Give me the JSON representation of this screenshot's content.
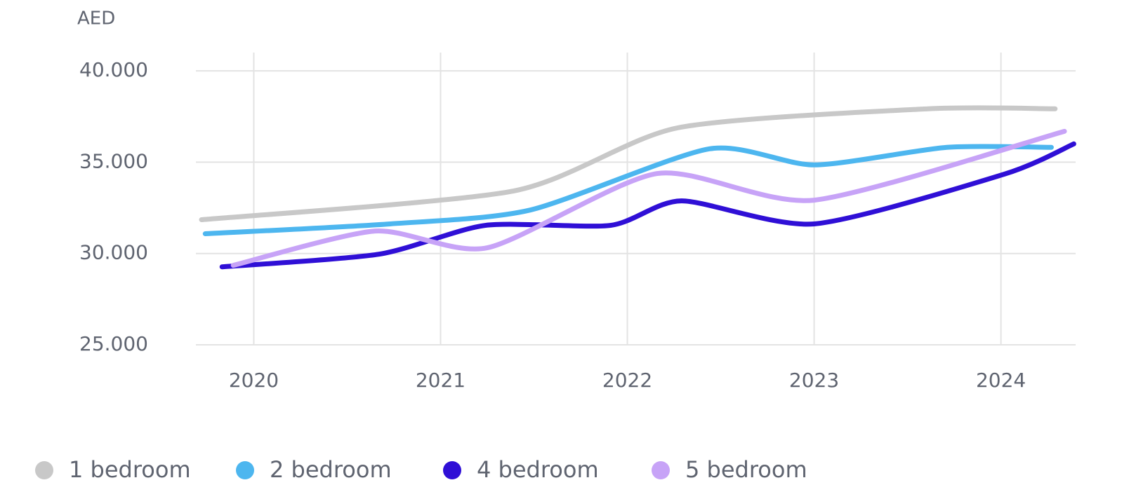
{
  "chart_data": {
    "type": "line",
    "y_unit": "AED",
    "xlim": [
      2019.69,
      2024.4
    ],
    "xticks": [
      2020,
      2021,
      2022,
      2023,
      2024
    ],
    "ylim": [
      25000,
      41000
    ],
    "yticks": [
      {
        "value": 25000,
        "label": "25.000"
      },
      {
        "value": 30000,
        "label": "30.000"
      },
      {
        "value": 35000,
        "label": "35.000"
      },
      {
        "value": 40000,
        "label": "40.000"
      }
    ],
    "grid": true,
    "legend": "bottom",
    "series": [
      {
        "name": "1 bedroom",
        "color": "#c8c8c8",
        "x": [
          2019.72,
          2021.39,
          2022.27,
          2023.61,
          2024.29
        ],
        "values": [
          31850,
          33420,
          36880,
          37920,
          37920
        ]
      },
      {
        "name": "2 bedroom",
        "color": "#4db6ef",
        "x": [
          2019.74,
          2020.73,
          2021.48,
          2022.44,
          2023.0,
          2023.71,
          2024.27
        ],
        "values": [
          31080,
          31620,
          32380,
          35730,
          34850,
          35810,
          35810
        ]
      },
      {
        "name": "4 bedroom",
        "color": "#2f0fd6",
        "x": [
          2019.83,
          2020.67,
          2021.24,
          2021.91,
          2022.29,
          2023.0,
          2024.02,
          2024.39
        ],
        "values": [
          29270,
          29960,
          31540,
          31540,
          32880,
          31620,
          34350,
          36000
        ]
      },
      {
        "name": "5 bedroom",
        "color": "#c7a3f7",
        "x": [
          2019.89,
          2020.65,
          2021.25,
          2022.16,
          2023.0,
          2024.34
        ],
        "values": [
          29350,
          31230,
          30310,
          34380,
          32920,
          36690
        ]
      }
    ]
  }
}
